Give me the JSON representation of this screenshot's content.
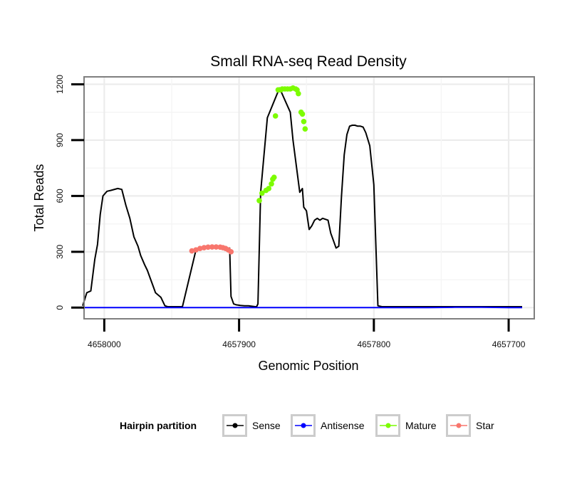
{
  "chart_data": {
    "type": "line",
    "title": "Small RNA-seq Read Density",
    "xlabel": "Genomic Position",
    "ylabel": "Total Reads",
    "xlim": [
      4658015,
      4657681
    ],
    "ylim": [
      -60,
      1240
    ],
    "x_reversed": true,
    "xticks": [
      4658000,
      4657900,
      4657800,
      4657700
    ],
    "xtick_labels": [
      "4658000",
      "4657900",
      "4657800",
      "4657700"
    ],
    "yticks": [
      0,
      300,
      600,
      900,
      1200
    ],
    "ytick_labels": [
      "0",
      "300",
      "600",
      "900",
      "1200"
    ],
    "grid": true,
    "legend": {
      "title": "Hairpin partition",
      "position": "bottom",
      "entries": [
        {
          "label": "Sense",
          "color": "#000000"
        },
        {
          "label": "Antisense",
          "color": "#0000ff"
        },
        {
          "label": "Mature",
          "color": "#7cfc00"
        },
        {
          "label": "Star",
          "color": "#f8766d"
        }
      ]
    },
    "series": [
      {
        "name": "Sense",
        "color": "#000000",
        "x": [
          4658016,
          4658013,
          4658010,
          4658007,
          4658005,
          4658003,
          4658001,
          4657998,
          4657995,
          4657990,
          4657987,
          4657984,
          4657981,
          4657978,
          4657975,
          4657973,
          4657970,
          4657968,
          4657966,
          4657964,
          4657962,
          4657958,
          4657955,
          4657953,
          4657950,
          4657947,
          4657945,
          4657942,
          4657932,
          4657925,
          4657907,
          4657906,
          4657904,
          4657902,
          4657899,
          4657896,
          4657893,
          4657891,
          4657888,
          4657887,
          4657886,
          4657884,
          4657879,
          4657870,
          4657862,
          4657860,
          4657855,
          4657853,
          4657852,
          4657850,
          4657848,
          4657846,
          4657844,
          4657842,
          4657840,
          4657838,
          4657834,
          4657832,
          4657830,
          4657828,
          4657826,
          4657824,
          4657822,
          4657820,
          4657818,
          4657816,
          4657814,
          4657812,
          4657810,
          4657808,
          4657806,
          4657803,
          4657800,
          4657797,
          4657794,
          4657791,
          4657789,
          4657788,
          4657786,
          4657785,
          4657750,
          4657730,
          4657710,
          4657700,
          4657690
        ],
        "values": [
          10,
          80,
          90,
          260,
          340,
          500,
          600,
          625,
          630,
          640,
          635,
          550,
          480,
          380,
          330,
          280,
          230,
          200,
          160,
          120,
          80,
          55,
          10,
          5,
          5,
          5,
          5,
          5,
          310,
          330,
          320,
          60,
          20,
          15,
          12,
          10,
          10,
          8,
          5,
          5,
          20,
          620,
          1020,
          1180,
          1050,
          900,
          620,
          640,
          540,
          520,
          420,
          440,
          470,
          480,
          470,
          480,
          470,
          400,
          360,
          320,
          330,
          600,
          820,
          930,
          975,
          980,
          980,
          975,
          975,
          970,
          940,
          870,
          660,
          10,
          5,
          5,
          5,
          5,
          5,
          5,
          5,
          5,
          5,
          5,
          5
        ]
      },
      {
        "name": "Antisense",
        "color": "#0000ff",
        "x": [
          4658016,
          4657760,
          4657740,
          4657720,
          4657700,
          4657690
        ],
        "values": [
          0,
          0,
          2,
          2,
          0,
          0
        ]
      },
      {
        "name": "Mature",
        "color": "#7cfc00",
        "x": [
          4657885,
          4657883,
          4657880,
          4657878,
          4657876,
          4657875,
          4657874,
          4657873,
          4657871,
          4657869,
          4657868,
          4657866,
          4657864,
          4657862,
          4657860,
          4657858,
          4657857,
          4657856,
          4657854,
          4657853,
          4657852,
          4657851
        ],
        "values": [
          575,
          615,
          630,
          640,
          665,
          690,
          700,
          1030,
          1170,
          1170,
          1175,
          1175,
          1175,
          1175,
          1180,
          1175,
          1170,
          1150,
          1050,
          1040,
          1000,
          960
        ]
      },
      {
        "name": "Star",
        "color": "#f8766d",
        "x": [
          4657935,
          4657932,
          4657929,
          4657926,
          4657923,
          4657920,
          4657917,
          4657914,
          4657912,
          4657910,
          4657908,
          4657906
        ],
        "values": [
          305,
          310,
          318,
          322,
          325,
          326,
          326,
          325,
          322,
          318,
          310,
          300
        ]
      }
    ]
  }
}
